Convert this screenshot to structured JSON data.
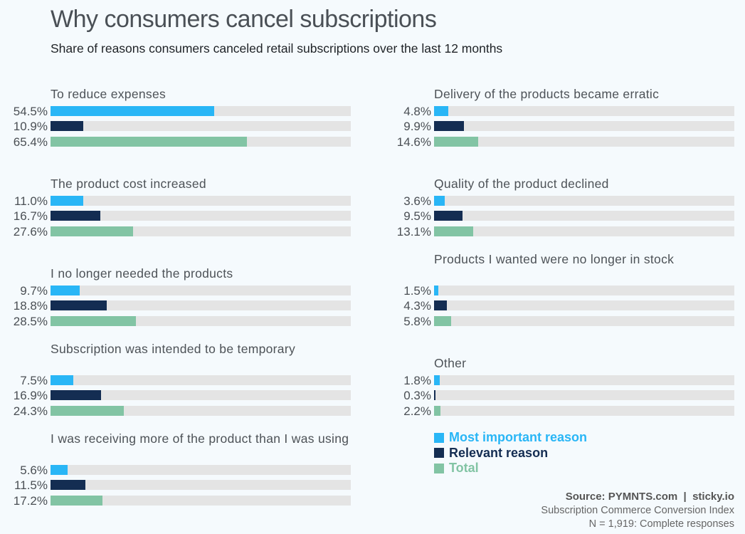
{
  "title": "Why consumers cancel subscriptions",
  "subtitle": "Share of reasons consumers canceled retail subscriptions over the last 12 months",
  "colors": {
    "most_important": "#29b6f6",
    "relevant": "#142d52",
    "total": "#82c4a4",
    "track": "#e4e4e4"
  },
  "chart_data": {
    "type": "bar",
    "orientation": "horizontal",
    "title": "Why consumers cancel subscriptions",
    "subtitle": "Share of reasons consumers canceled retail subscriptions over the last 12 months",
    "xlim": [
      0,
      100
    ],
    "unit": "%",
    "grid": false,
    "legend_position": "bottom-right",
    "series_names": [
      "Most important reason",
      "Relevant reason",
      "Total"
    ],
    "categories": [
      {
        "label": "To reduce expenses",
        "values": [
          54.5,
          10.9,
          65.4
        ],
        "display": [
          "54.5%",
          "10.9%",
          "65.4%"
        ]
      },
      {
        "label": "The product cost increased",
        "values": [
          11.0,
          16.7,
          27.6
        ],
        "display": [
          "11.0%",
          "16.7%",
          "27.6%"
        ]
      },
      {
        "label": "I no longer needed the products",
        "values": [
          9.7,
          18.8,
          28.5
        ],
        "display": [
          "9.7%",
          "18.8%",
          "28.5%"
        ]
      },
      {
        "label": "Subscription was intended to be temporary",
        "values": [
          7.5,
          16.9,
          24.3
        ],
        "display": [
          "7.5%",
          "16.9%",
          "24.3%"
        ]
      },
      {
        "label": "I was receiving more of the product than I was using",
        "values": [
          5.6,
          11.5,
          17.2
        ],
        "display": [
          "5.6%",
          "11.5%",
          "17.2%"
        ]
      },
      {
        "label": "Delivery of the products became erratic",
        "values": [
          4.8,
          9.9,
          14.6
        ],
        "display": [
          "4.8%",
          "9.9%",
          "14.6%"
        ]
      },
      {
        "label": "Quality of the product declined",
        "values": [
          3.6,
          9.5,
          13.1
        ],
        "display": [
          "3.6%",
          "9.5%",
          "13.1%"
        ]
      },
      {
        "label": "Products I wanted were no longer in stock",
        "values": [
          1.5,
          4.3,
          5.8
        ],
        "display": [
          "1.5%",
          "4.3%",
          "5.8%"
        ]
      },
      {
        "label": "Other",
        "values": [
          1.8,
          0.3,
          2.2
        ],
        "display": [
          "1.8%",
          "0.3%",
          "2.2%"
        ]
      }
    ]
  },
  "legend": [
    {
      "label": "Most important reason"
    },
    {
      "label": "Relevant reason"
    },
    {
      "label": "Total"
    }
  ],
  "source": {
    "line1": "Source: PYMNTS.com  |  sticky.io",
    "line2": "Subscription Commerce Conversion Index",
    "line3": "N = 1,919: Complete responses"
  }
}
